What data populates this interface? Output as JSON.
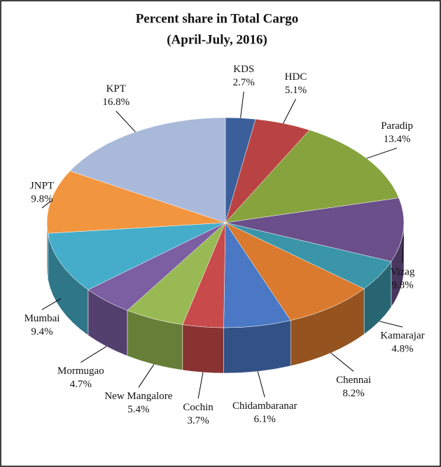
{
  "chart_data": {
    "type": "pie3d",
    "title": "Percent share in Total Cargo",
    "subtitle": "(April-July, 2016)",
    "categories": [
      "KDS",
      "HDC",
      "Paradip",
      "Vizag",
      "Kamarajar",
      "Chennai",
      "Chidambaranar",
      "Cochin",
      "New Mangalore",
      "Mormugao",
      "Mumbai",
      "JNPT",
      "KPT"
    ],
    "values": [
      2.7,
      5.1,
      13.4,
      9.8,
      4.8,
      8.2,
      6.1,
      3.7,
      5.4,
      4.7,
      9.4,
      9.8,
      16.8
    ],
    "value_labels": [
      "2.7%",
      "5.1%",
      "13.4%",
      "9.8%",
      "4.8%",
      "8.2%",
      "6.1%",
      "3.7%",
      "5.4%",
      "4.7%",
      "9.4%",
      "9.8%",
      "16.8%"
    ],
    "colors": [
      "#3a5f9a",
      "#b94343",
      "#86a33e",
      "#6a4f8a",
      "#3b95a8",
      "#d97a2e",
      "#4a78c4",
      "#c84a4a",
      "#98b954",
      "#7c5ea3",
      "#45adc9",
      "#f2953f",
      "#a9b9d9"
    ]
  }
}
